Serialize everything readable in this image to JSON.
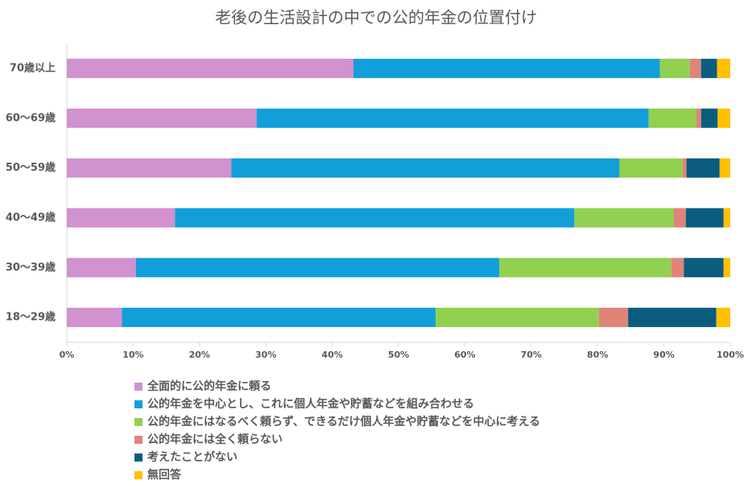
{
  "chart_data": {
    "type": "stacked_barh",
    "title": "老後の生活設計の中での公的年金の位置付け",
    "categories": [
      "70歳以上",
      "60～69歳",
      "50～59歳",
      "40～49歳",
      "30～39歳",
      "18～29歳"
    ],
    "series": [
      {
        "name": "全面的に公的年金に頼る",
        "color": "#d291cf",
        "values": [
          43.2,
          28.6,
          24.8,
          16.3,
          10.4,
          8.3
        ]
      },
      {
        "name": "公的年金を中心とし、これに個人年金や貯蓄などを組み合わせる",
        "color": "#129fd9",
        "values": [
          46.2,
          59.1,
          58.5,
          60.2,
          54.8,
          47.3
        ]
      },
      {
        "name": "公的年金にはなるべく頼らず、できるだけ個人年金や貯蓄などを中心に考える",
        "color": "#92d050",
        "values": [
          4.5,
          7.2,
          9.5,
          15.0,
          25.9,
          24.6
        ]
      },
      {
        "name": "公的年金には全く頼らない",
        "color": "#e0847a",
        "values": [
          1.7,
          0.7,
          0.6,
          1.8,
          1.9,
          4.4
        ]
      },
      {
        "name": "考えたことがない",
        "color": "#0b5d7e",
        "values": [
          2.4,
          2.5,
          5.0,
          5.7,
          6.0,
          13.3
        ]
      },
      {
        "name": "無回答",
        "color": "#ffc000",
        "values": [
          2.0,
          1.9,
          1.6,
          1.0,
          1.0,
          2.1
        ]
      }
    ],
    "xlim": [
      0,
      100
    ],
    "xticks": [
      {
        "value": 0,
        "label": "0%"
      },
      {
        "value": 10,
        "label": "10%"
      },
      {
        "value": 20,
        "label": "20%"
      },
      {
        "value": 30,
        "label": "30%"
      },
      {
        "value": 40,
        "label": "40%"
      },
      {
        "value": 50,
        "label": "50%"
      },
      {
        "value": 60,
        "label": "60%"
      },
      {
        "value": 70,
        "label": "70%"
      },
      {
        "value": 80,
        "label": "80%"
      },
      {
        "value": 90,
        "label": "90%"
      },
      {
        "value": 100,
        "label": "100%"
      }
    ]
  }
}
